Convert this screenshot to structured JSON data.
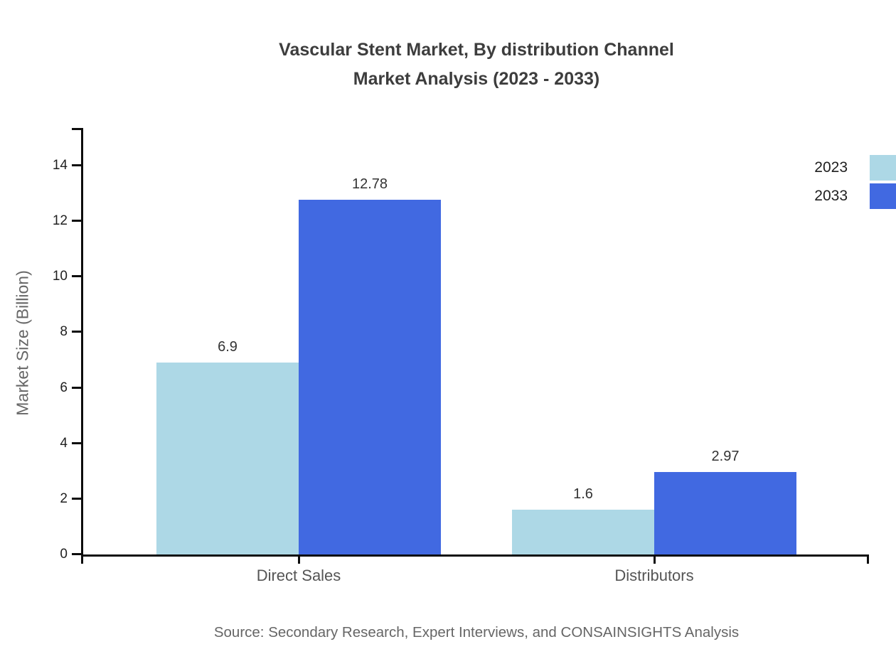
{
  "source": "Source: Secondary Research, Expert Interviews, and CONSAINSIGHTS Analysis",
  "colors": {
    "series_2023": "#ADD8E6",
    "series_2033": "#4169E1",
    "axis": "#0d0d0d",
    "title_text": "#3d3d3d",
    "muted_text": "#666666"
  },
  "chart_data": {
    "type": "bar",
    "title": "Vascular Stent Market, By distribution Channel Market Analysis (2023 - 2033)",
    "title_lines": [
      "Vascular Stent Market, By distribution Channel",
      "Market Analysis (2023 - 2033)"
    ],
    "categories": [
      "Direct Sales",
      "Distributors"
    ],
    "series": [
      {
        "name": "2023",
        "color": "#ADD8E6",
        "values": [
          6.9,
          1.6
        ]
      },
      {
        "name": "2033",
        "color": "#4169E1",
        "values": [
          12.78,
          2.97
        ]
      }
    ],
    "value_labels": [
      [
        "6.9",
        "1.6"
      ],
      [
        "12.78",
        "2.97"
      ]
    ],
    "xlabel": "",
    "ylabel": "Market Size (Billion)",
    "yticks": [
      0,
      2,
      4,
      6,
      8,
      10,
      12,
      14
    ],
    "ylim": [
      0,
      14
    ],
    "grid": false,
    "legend_position": "top-right"
  }
}
